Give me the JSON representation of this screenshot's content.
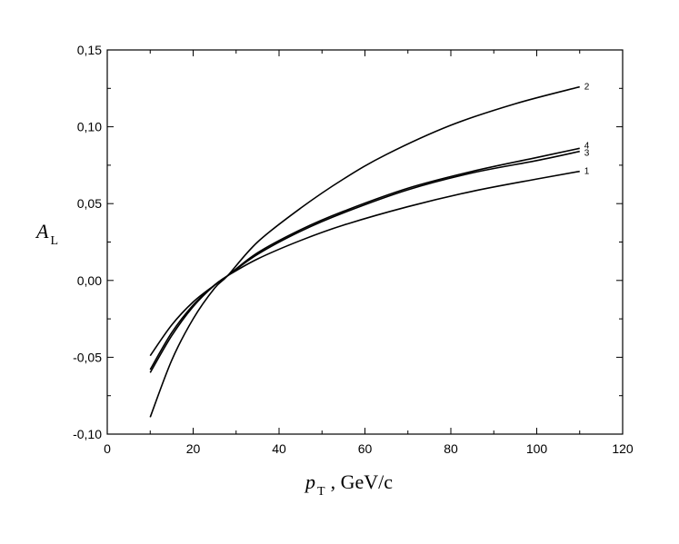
{
  "chart_data": {
    "type": "line",
    "xlabel": "p_T , GeV/c",
    "xlabel_main": "p",
    "xlabel_sub": "T",
    "xlabel_unit": ", GeV/c",
    "ylabel": "A_L",
    "ylabel_main": "A",
    "ylabel_sub": "L",
    "xlim": [
      0,
      120
    ],
    "ylim": [
      -0.1,
      0.15
    ],
    "xticks": [
      0,
      20,
      40,
      60,
      80,
      100,
      120
    ],
    "xtick_labels": [
      "0",
      "20",
      "40",
      "60",
      "80",
      "100",
      "120"
    ],
    "yticks": [
      -0.1,
      -0.05,
      0,
      0.05,
      0.1,
      0.15
    ],
    "ytick_labels": [
      "-0,10",
      "-0,05",
      "0,00",
      "0,05",
      "0,10",
      "0,15"
    ],
    "grid": false,
    "line_color": "#000000",
    "series": [
      {
        "label": "1",
        "x": [
          10,
          15,
          20,
          25,
          28,
          35,
          45,
          55,
          70,
          85,
          100,
          110
        ],
        "y": [
          -0.049,
          -0.029,
          -0.014,
          -0.003,
          0.003,
          0.014,
          0.026,
          0.036,
          0.048,
          0.058,
          0.066,
          0.071
        ]
      },
      {
        "label": "2",
        "x": [
          10,
          15,
          20,
          25,
          28,
          35,
          45,
          55,
          65,
          80,
          95,
          110
        ],
        "y": [
          -0.089,
          -0.052,
          -0.025,
          -0.005,
          0.003,
          0.025,
          0.047,
          0.066,
          0.082,
          0.101,
          0.115,
          0.126
        ]
      },
      {
        "label": "3",
        "x": [
          10,
          15,
          20,
          25,
          28,
          35,
          45,
          55,
          70,
          85,
          100,
          110
        ],
        "y": [
          -0.06,
          -0.036,
          -0.017,
          -0.003,
          0.003,
          0.017,
          0.032,
          0.044,
          0.059,
          0.07,
          0.078,
          0.084
        ]
      },
      {
        "label": "4",
        "x": [
          10,
          15,
          20,
          25,
          28,
          35,
          45,
          55,
          70,
          85,
          100,
          110
        ],
        "y": [
          -0.058,
          -0.034,
          -0.016,
          -0.003,
          0.003,
          0.018,
          0.033,
          0.045,
          0.06,
          0.071,
          0.08,
          0.086
        ]
      }
    ]
  }
}
